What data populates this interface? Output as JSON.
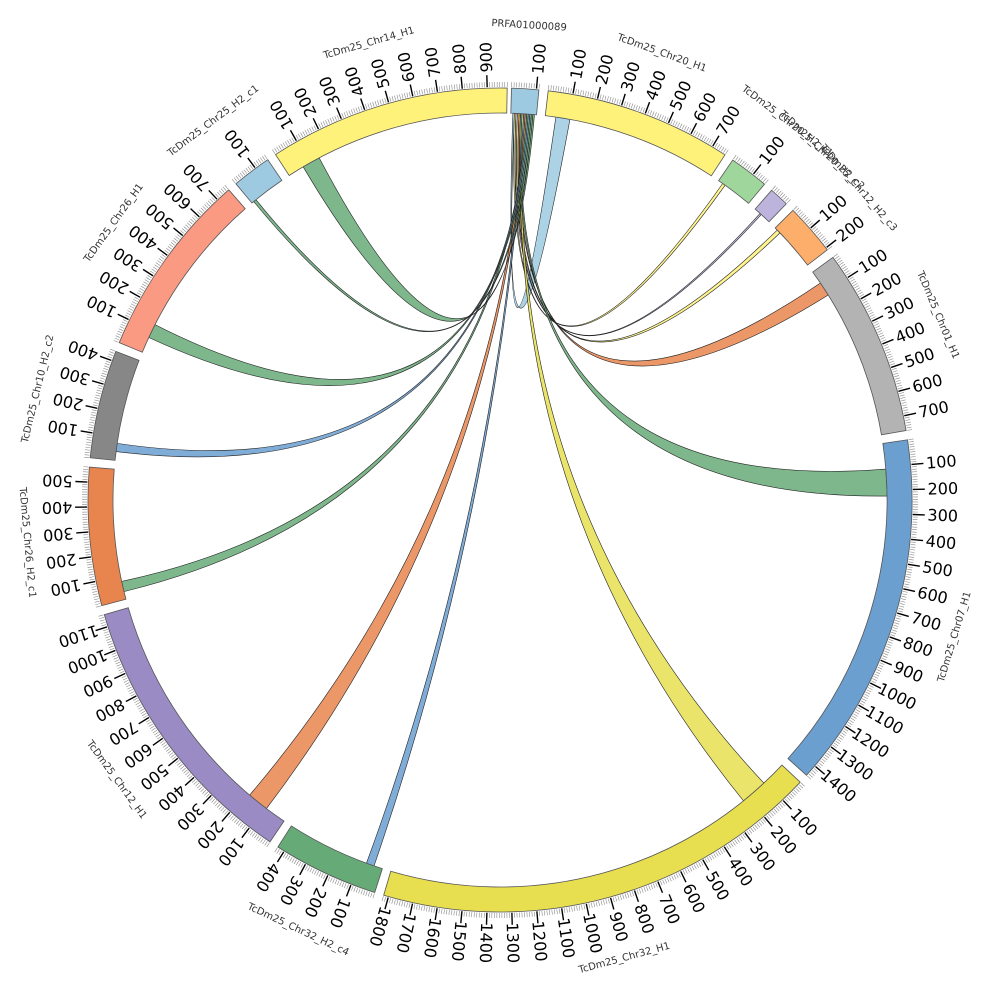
{
  "chart_data": {
    "type": "chord",
    "chromosomes": [
      {
        "name": "PRFA01000089",
        "length": 110,
        "color": "#9ecae1",
        "tick_labels": [
          "100"
        ]
      },
      {
        "name": "TcDm25_Chr20_H1",
        "length": 760,
        "color": "#fff27a",
        "tick_labels": [
          "100",
          "200",
          "300",
          "400",
          "500",
          "600",
          "700"
        ]
      },
      {
        "name": "TcDm25_Chr20_H2_c1",
        "length": 160,
        "color": "#9fd69b",
        "tick_labels": [
          "100"
        ]
      },
      {
        "name": "TcDm25_Chr20_H2_c2",
        "length": 80,
        "color": "#bcb4dc",
        "tick_labels": []
      },
      {
        "name": "TcDm25_Chr12_H2_c3",
        "length": 210,
        "color": "#fdae6b",
        "tick_labels": [
          "100",
          "200"
        ]
      },
      {
        "name": "TcDm25_Chr01_H1",
        "length": 760,
        "color": "#b3b3b3",
        "tick_labels": [
          "100",
          "200",
          "300",
          "400",
          "500",
          "600",
          "700"
        ]
      },
      {
        "name": "TcDm25_Chr07_H1",
        "length": 1450,
        "color": "#6a9fd0",
        "tick_labels": [
          "100",
          "200",
          "300",
          "400",
          "500",
          "600",
          "700",
          "800",
          "900",
          "1000",
          "1100",
          "1200",
          "1300",
          "1400"
        ]
      },
      {
        "name": "TcDm25_Chr32_H1",
        "length": 1820,
        "color": "#e8df50",
        "tick_labels": [
          "100",
          "200",
          "300",
          "400",
          "500",
          "600",
          "700",
          "800",
          "900",
          "1000",
          "1100",
          "1200",
          "1300",
          "1400",
          "1500",
          "1600",
          "1700",
          "1800"
        ]
      },
      {
        "name": "TcDm25_Chr32_H2_c4",
        "length": 430,
        "color": "#66aa77",
        "tick_labels": [
          "100",
          "200",
          "300",
          "400"
        ]
      },
      {
        "name": "TcDm25_Chr12_H1",
        "length": 1150,
        "color": "#9b8bc4",
        "tick_labels": [
          "100",
          "200",
          "300",
          "400",
          "500",
          "600",
          "700",
          "800",
          "900",
          "1000",
          "1100"
        ]
      },
      {
        "name": "TcDm25_Chr26_H2_c1",
        "length": 560,
        "color": "#e8854e",
        "tick_labels": [
          "100",
          "200",
          "300",
          "400",
          "500"
        ]
      },
      {
        "name": "TcDm25_Chr10_H2_c2",
        "length": 440,
        "color": "#878787",
        "tick_labels": [
          "100",
          "200",
          "300",
          "400"
        ]
      },
      {
        "name": "TcDm25_Chr26_H1",
        "length": 760,
        "color": "#fb9a83",
        "tick_labels": [
          "100",
          "200",
          "300",
          "400",
          "500",
          "600",
          "700"
        ]
      },
      {
        "name": "TcDm25_Chr25_H2_c1",
        "length": 160,
        "color": "#9ecae1",
        "tick_labels": [
          "100"
        ]
      },
      {
        "name": "TcDm25_Chr14_H1",
        "length": 980,
        "color": "#fff27a",
        "tick_labels": [
          "100",
          "200",
          "300",
          "400",
          "500",
          "600",
          "700",
          "800",
          "900"
        ]
      }
    ],
    "ribbons": [
      {
        "source": "PRFA01000089",
        "target": "TcDm25_Chr20_H1",
        "color": "#9ecae1"
      },
      {
        "source": "PRFA01000089",
        "target": "TcDm25_Chr20_H2_c1",
        "color": "#fff27a"
      },
      {
        "source": "PRFA01000089",
        "target": "TcDm25_Chr20_H2_c2",
        "color": "#bcb4dc"
      },
      {
        "source": "PRFA01000089",
        "target": "TcDm25_Chr12_H2_c3",
        "color": "#fff27a"
      },
      {
        "source": "PRFA01000089",
        "target": "TcDm25_Chr01_H1",
        "color": "#e8854e"
      },
      {
        "source": "PRFA01000089",
        "target": "TcDm25_Chr07_H1",
        "color": "#66aa77"
      },
      {
        "source": "PRFA01000089",
        "target": "TcDm25_Chr32_H1",
        "color": "#e8df50"
      },
      {
        "source": "PRFA01000089",
        "target": "TcDm25_Chr32_H2_c4",
        "color": "#6a9fd0"
      },
      {
        "source": "PRFA01000089",
        "target": "TcDm25_Chr12_H1",
        "color": "#e8854e"
      },
      {
        "source": "PRFA01000089",
        "target": "TcDm25_Chr26_H2_c1",
        "color": "#66aa77"
      },
      {
        "source": "PRFA01000089",
        "target": "TcDm25_Chr10_H2_c2",
        "color": "#6a9fd0"
      },
      {
        "source": "PRFA01000089",
        "target": "TcDm25_Chr26_H1",
        "color": "#66aa77"
      },
      {
        "source": "PRFA01000089",
        "target": "TcDm25_Chr25_H2_c1",
        "color": "#66aa77"
      },
      {
        "source": "PRFA01000089",
        "target": "TcDm25_Chr14_H1",
        "color": "#66aa77"
      }
    ]
  }
}
